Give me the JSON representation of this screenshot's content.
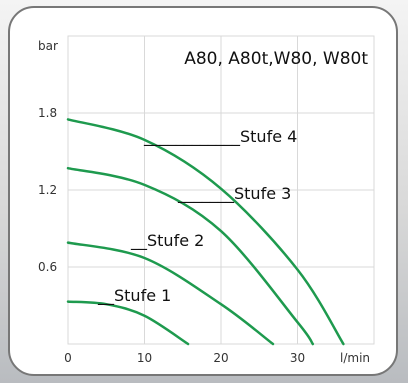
{
  "chart_data": {
    "type": "line",
    "title": "A80, A80t,W80, W80t",
    "xlabel": "l/min",
    "ylabel": "bar",
    "xlim": [
      0,
      40
    ],
    "ylim": [
      0,
      2.4
    ],
    "x_ticks": [
      "0",
      "10",
      "20",
      "30"
    ],
    "y_ticks": [
      "0.6",
      "1.2",
      "1.8"
    ],
    "grid": true,
    "series": [
      {
        "name": "Stufe 4",
        "points": [
          [
            0,
            1.75
          ],
          [
            10,
            1.59
          ],
          [
            20,
            1.21
          ],
          [
            30,
            0.58
          ],
          [
            36,
            0.0
          ]
        ]
      },
      {
        "name": "Stufe 3",
        "points": [
          [
            0,
            1.37
          ],
          [
            10,
            1.24
          ],
          [
            20,
            0.88
          ],
          [
            30,
            0.17
          ],
          [
            32,
            0.0
          ]
        ]
      },
      {
        "name": "Stufe 2",
        "points": [
          [
            0,
            0.79
          ],
          [
            10,
            0.67
          ],
          [
            20,
            0.31
          ],
          [
            26.8,
            0.0
          ]
        ]
      },
      {
        "name": "Stufe 1",
        "points": [
          [
            0,
            0.33
          ],
          [
            5,
            0.31
          ],
          [
            10,
            0.22
          ],
          [
            15.7,
            0.0
          ]
        ]
      }
    ],
    "annotations": [
      {
        "text": "____________Stufe 4",
        "series": "Stufe 4"
      },
      {
        "text": "_______Stufe 3",
        "series": "Stufe 3"
      },
      {
        "text": "__Stufe 2",
        "series": "Stufe 2"
      },
      {
        "text": "__Stufe 1",
        "series": "Stufe 1"
      }
    ],
    "line_color": "#1e9a4e",
    "grid_color": "#d9d9d9"
  }
}
